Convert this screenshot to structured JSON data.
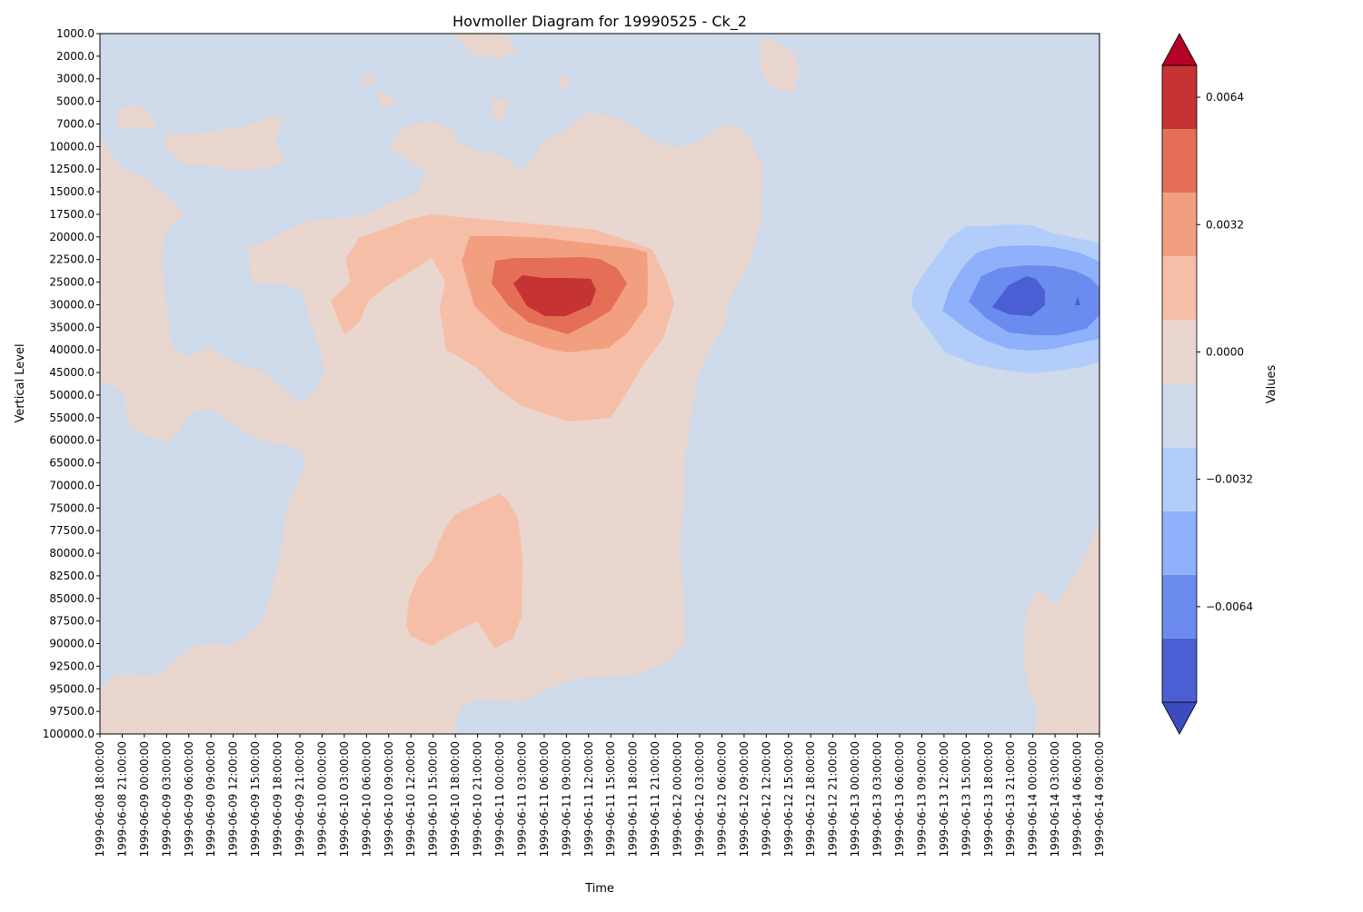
{
  "chart_data": {
    "type": "heatmap",
    "subtype": "filled-contour",
    "title": "Hovmoller Diagram for 19990525 - Ck_2",
    "xlabel": "Time",
    "ylabel": "Vertical Level",
    "x_ticks": [
      "1999-06-08 18:00:00",
      "1999-06-08 21:00:00",
      "1999-06-09 00:00:00",
      "1999-06-09 03:00:00",
      "1999-06-09 06:00:00",
      "1999-06-09 09:00:00",
      "1999-06-09 12:00:00",
      "1999-06-09 15:00:00",
      "1999-06-09 18:00:00",
      "1999-06-09 21:00:00",
      "1999-06-10 00:00:00",
      "1999-06-10 03:00:00",
      "1999-06-10 06:00:00",
      "1999-06-10 09:00:00",
      "1999-06-10 12:00:00",
      "1999-06-10 15:00:00",
      "1999-06-10 18:00:00",
      "1999-06-10 21:00:00",
      "1999-06-11 00:00:00",
      "1999-06-11 03:00:00",
      "1999-06-11 06:00:00",
      "1999-06-11 09:00:00",
      "1999-06-11 12:00:00",
      "1999-06-11 15:00:00",
      "1999-06-11 18:00:00",
      "1999-06-11 21:00:00",
      "1999-06-12 00:00:00",
      "1999-06-12 03:00:00",
      "1999-06-12 06:00:00",
      "1999-06-12 09:00:00",
      "1999-06-12 12:00:00",
      "1999-06-12 15:00:00",
      "1999-06-12 18:00:00",
      "1999-06-12 21:00:00",
      "1999-06-13 00:00:00",
      "1999-06-13 03:00:00",
      "1999-06-13 06:00:00",
      "1999-06-13 09:00:00",
      "1999-06-13 12:00:00",
      "1999-06-13 15:00:00",
      "1999-06-13 18:00:00",
      "1999-06-13 21:00:00",
      "1999-06-14 00:00:00",
      "1999-06-14 03:00:00",
      "1999-06-14 06:00:00",
      "1999-06-14 09:00:00"
    ],
    "y_ticks": [
      "1000.0",
      "2000.0",
      "3000.0",
      "5000.0",
      "7000.0",
      "10000.0",
      "12500.0",
      "15000.0",
      "17500.0",
      "20000.0",
      "22500.0",
      "25000.0",
      "30000.0",
      "35000.0",
      "40000.0",
      "45000.0",
      "50000.0",
      "55000.0",
      "60000.0",
      "65000.0",
      "70000.0",
      "75000.0",
      "77500.0",
      "80000.0",
      "82500.0",
      "85000.0",
      "87500.0",
      "90000.0",
      "92500.0",
      "95000.0",
      "97500.0",
      "100000.0"
    ],
    "y_axis": "inverted (1000 at top, 100000 at bottom)",
    "contour_levels": [
      -0.0088,
      -0.0072,
      -0.0056,
      -0.004,
      -0.0024,
      -0.0008,
      0.0008,
      0.0024,
      0.004,
      0.0056,
      0.0072
    ],
    "level_colors": [
      "#4a5fd4",
      "#6b8bee",
      "#8fb0fb",
      "#b3cdfb",
      "#cfdaea",
      "#e8d6cf",
      "#f6bea6",
      "#f29f80",
      "#e46e56",
      "#c53334"
    ],
    "extend": "both",
    "extend_min_color": "#3b4cc0",
    "extend_max_color": "#b40426",
    "features": [
      {
        "name": "positive maximum",
        "x": "1999-06-11 06:00:00",
        "y": 27500,
        "value": 0.0064
      },
      {
        "name": "negative minimum",
        "x": "1999-06-13 21:00:00",
        "y": 30000,
        "value": -0.0072
      },
      {
        "name": "lower positive lobe",
        "x": "1999-06-10 21:00:00",
        "y": 82500,
        "value": 0.0024
      }
    ],
    "colorbar": {
      "label": "Values",
      "ticks": [
        "0.0064",
        "0.0032",
        "0.0000",
        "−0.0032",
        "−0.0064"
      ],
      "placement": "right",
      "orientation": "vertical"
    },
    "grid": false
  }
}
